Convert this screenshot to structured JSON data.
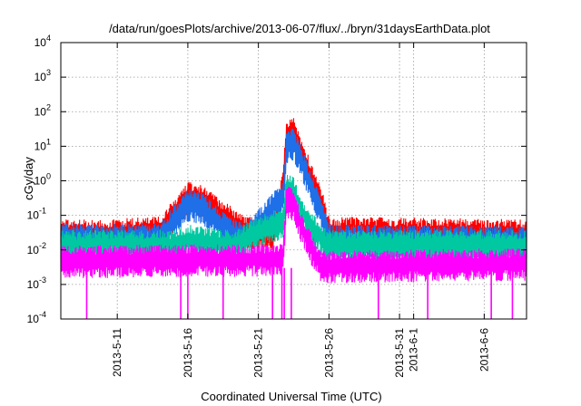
{
  "chart_data": {
    "type": "line",
    "title": "/data/run/goesPlots/archive/2013-06-07/flux/../bryn/31daysEarthData.plot",
    "xlabel": "Coordinated Universal Time (UTC)",
    "ylabel": "cGy/day",
    "yscale": "log",
    "ylim": [
      0.0001,
      10000
    ],
    "xlim": [
      "2013-05-07",
      "2013-06-09"
    ],
    "grid": true,
    "x_ticks": [
      "2013-5-11",
      "2013-5-16",
      "2013-5-21",
      "2013-5-26",
      "2013-5-31",
      "2013-6-1",
      "2013-6-6"
    ],
    "y_ticks": [
      {
        "base": "10",
        "exp": "-4",
        "value": 0.0001
      },
      {
        "base": "10",
        "exp": "-3",
        "value": 0.001
      },
      {
        "base": "10",
        "exp": "-2",
        "value": 0.01
      },
      {
        "base": "10",
        "exp": "-1",
        "value": 0.1
      },
      {
        "base": "10",
        "exp": "0",
        "value": 1
      },
      {
        "base": "10",
        "exp": "1",
        "value": 10
      },
      {
        "base": "10",
        "exp": "2",
        "value": 100
      },
      {
        "base": "10",
        "exp": "3",
        "value": 1000
      },
      {
        "base": "10",
        "exp": "4",
        "value": 10000
      }
    ],
    "series": [
      {
        "color": "#ff0000",
        "values": [
          [
            "2013-05-07",
            0.04
          ],
          [
            "2013-05-10",
            0.04
          ],
          [
            "2013-05-14",
            0.05
          ],
          [
            "2013-05-15",
            0.15
          ],
          [
            "2013-05-16",
            0.5
          ],
          [
            "2013-05-17",
            0.4
          ],
          [
            "2013-05-18",
            0.2
          ],
          [
            "2013-05-19",
            0.1
          ],
          [
            "2013-05-20",
            0.05
          ],
          [
            "2013-05-22",
            0.04
          ],
          [
            "2013-05-22T18:00",
            1
          ],
          [
            "2013-05-23",
            30
          ],
          [
            "2013-05-23T12:00",
            40
          ],
          [
            "2013-05-24",
            10
          ],
          [
            "2013-05-25",
            1
          ],
          [
            "2013-05-25T12:00",
            0.3
          ],
          [
            "2013-05-26",
            0.05
          ],
          [
            "2013-06-09",
            0.04
          ]
        ]
      },
      {
        "color": "#1e6fe8",
        "values": [
          [
            "2013-05-07",
            0.03
          ],
          [
            "2013-05-14",
            0.03
          ],
          [
            "2013-05-15",
            0.1
          ],
          [
            "2013-05-16",
            0.3
          ],
          [
            "2013-05-17",
            0.25
          ],
          [
            "2013-05-18",
            0.1
          ],
          [
            "2013-05-19",
            0.05
          ],
          [
            "2013-05-20",
            0.03
          ],
          [
            "2013-05-22T18:00",
            0.5
          ],
          [
            "2013-05-23",
            15
          ],
          [
            "2013-05-23T12:00",
            18
          ],
          [
            "2013-05-24",
            6
          ],
          [
            "2013-05-25",
            0.5
          ],
          [
            "2013-05-25T12:00",
            0.15
          ],
          [
            "2013-05-26",
            0.03
          ],
          [
            "2013-06-09",
            0.025
          ]
        ]
      },
      {
        "color": "#00c8a0",
        "values": [
          [
            "2013-05-07",
            0.02
          ],
          [
            "2013-05-15",
            0.02
          ],
          [
            "2013-05-16",
            0.03
          ],
          [
            "2013-05-17",
            0.025
          ],
          [
            "2013-05-19",
            0.02
          ],
          [
            "2013-05-22T18:00",
            0.1
          ],
          [
            "2013-05-23",
            0.9
          ],
          [
            "2013-05-23T12:00",
            0.7
          ],
          [
            "2013-05-24",
            0.2
          ],
          [
            "2013-05-25",
            0.05
          ],
          [
            "2013-05-26",
            0.02
          ],
          [
            "2013-06-09",
            0.02
          ]
        ]
      },
      {
        "color": "#ff00ff",
        "values": [
          [
            "2013-05-07",
            0.007
          ],
          [
            "2013-05-22T18:00",
            0.008
          ],
          [
            "2013-05-23",
            0.4
          ],
          [
            "2013-05-23T12:00",
            0.3
          ],
          [
            "2013-05-24",
            0.08
          ],
          [
            "2013-05-25",
            0.01
          ],
          [
            "2013-05-25T12:00",
            0.005
          ],
          [
            "2013-05-26",
            0.005
          ],
          [
            "2013-06-09",
            0.006
          ]
        ]
      }
    ],
    "dropouts": [
      "2013-05-08T20:00",
      "2013-05-15T12:00",
      "2013-05-16",
      "2013-05-18T12:00",
      "2013-05-22",
      "2013-05-22T16:00",
      "2013-05-22T20:00",
      "2013-05-23T08:00",
      "2013-05-29T12:00",
      "2013-06-02",
      "2013-06-06T12:00",
      "2013-06-08"
    ]
  }
}
